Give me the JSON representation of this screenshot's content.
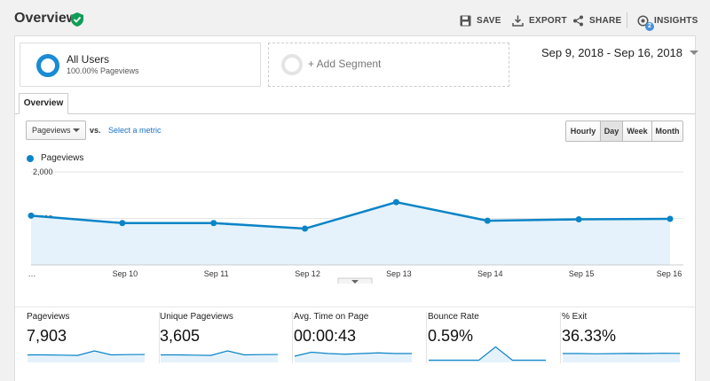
{
  "header": {
    "title": "Overview",
    "actions": {
      "save": "SAVE",
      "export": "EXPORT",
      "share": "SHARE",
      "insights": "INSIGHTS"
    },
    "insights_badge": "2"
  },
  "segments": {
    "active": {
      "name": "All Users",
      "sub": "100.00% Pageviews"
    },
    "add_label": "+ Add Segment"
  },
  "date_range": "Sep 9, 2018 - Sep 16, 2018",
  "tab": "Overview",
  "controls": {
    "metric": "Pageviews",
    "vs": "vs.",
    "select_metric": "Select a metric",
    "granularity": [
      "Hourly",
      "Day",
      "Week",
      "Month"
    ],
    "granularity_selected": "Day"
  },
  "chart_data": {
    "type": "area",
    "series": [
      {
        "name": "Pageviews",
        "values": [
          1060,
          900,
          900,
          780,
          1350,
          950,
          980,
          990
        ]
      }
    ],
    "x": [
      "…",
      "Sep 10",
      "Sep 11",
      "Sep 12",
      "Sep 13",
      "Sep 14",
      "Sep 15",
      "Sep 16"
    ],
    "y_ticks": [
      "1,000",
      "2,000"
    ],
    "ylim": [
      0,
      2000
    ],
    "grid": true,
    "legend": "top-left",
    "color": "#0b84c6"
  },
  "metrics": [
    {
      "label": "Pageviews",
      "value": "7,903",
      "spark": [
        5,
        5,
        4.8,
        4.6,
        8,
        5,
        5.2,
        5.3
      ]
    },
    {
      "label": "Unique Pageviews",
      "value": "3,605",
      "spark": [
        5,
        5,
        4.8,
        4.6,
        8,
        5,
        5.2,
        5.3
      ]
    },
    {
      "label": "Avg. Time on Page",
      "value": "00:00:43",
      "spark": [
        4,
        7,
        6,
        5.5,
        6,
        6.5,
        6,
        6
      ]
    },
    {
      "label": "Bounce Rate",
      "value": "0.59%",
      "spark": [
        1,
        1,
        1,
        1,
        11,
        1,
        1,
        1
      ]
    },
    {
      "label": "% Exit",
      "value": "36.33%",
      "spark": [
        6,
        6,
        5.8,
        5.9,
        6.1,
        6,
        6.2,
        6.1
      ]
    }
  ]
}
